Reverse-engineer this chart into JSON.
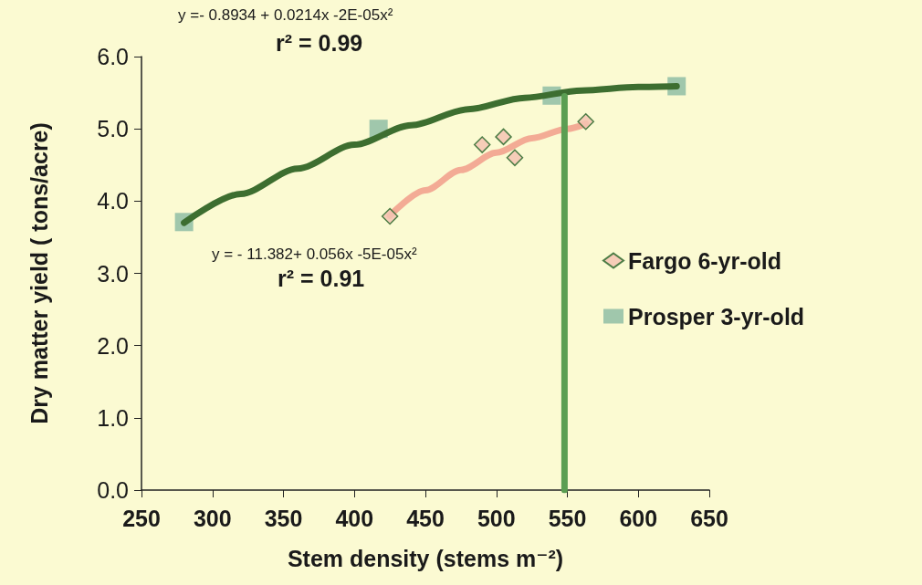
{
  "chart_data": {
    "type": "scatter",
    "xlabel": "Stem density (stems m⁻²)",
    "ylabel": "Dry matter yield ( tons/acre)",
    "xlim": [
      250,
      650
    ],
    "xticks": [
      250,
      300,
      350,
      400,
      450,
      500,
      550,
      600,
      650
    ],
    "ylim": [
      0,
      6
    ],
    "yticks": [
      {
        "value": 0,
        "label": "0.0"
      },
      {
        "value": 1,
        "label": "1.0"
      },
      {
        "value": 2,
        "label": "2.0"
      },
      {
        "value": 3,
        "label": "3.0"
      },
      {
        "value": 4,
        "label": "4.0"
      },
      {
        "value": 5,
        "label": "5.0"
      },
      {
        "value": 6,
        "label": "6.0"
      }
    ],
    "grid": false,
    "legend": "right",
    "series": [
      {
        "type": "line",
        "color": "#3d6e30",
        "marker": "none",
        "x": [
          280,
          320,
          360,
          400,
          440,
          480,
          520,
          560,
          600,
          627
        ],
        "values": [
          3.7,
          4.1,
          4.45,
          4.78,
          5.05,
          5.27,
          5.43,
          5.53,
          5.58,
          5.59
        ]
      },
      {
        "type": "line",
        "color": "#f3ab95",
        "marker": "none",
        "x": [
          425,
          450,
          475,
          500,
          525,
          550,
          563
        ],
        "values": [
          3.8,
          4.15,
          4.43,
          4.67,
          4.87,
          5.0,
          5.07
        ]
      },
      {
        "type": "line",
        "color": "#5b9e52",
        "marker": "none",
        "x": [
          548,
          548
        ],
        "values": [
          0,
          5.45
        ]
      },
      {
        "name": "Fargo 6-yr-old",
        "marker": "diamond",
        "color": "#f4c4b4",
        "x": [
          425,
          490,
          505,
          513,
          563
        ],
        "values": [
          3.79,
          4.78,
          4.89,
          4.6,
          5.1
        ]
      },
      {
        "name": "Prosper 3-yr-old",
        "marker": "square",
        "color": "#8fbda6",
        "x": [
          280,
          417,
          539,
          627
        ],
        "values": [
          3.71,
          5.0,
          5.46,
          5.59
        ]
      }
    ],
    "annotations": [
      "y =- 0.8934 + 0.0214x -2E-05x²",
      "r² = 0.99",
      "y = - 11.382+ 0.056x -5E-05x²",
      "r² = 0.91"
    ]
  }
}
